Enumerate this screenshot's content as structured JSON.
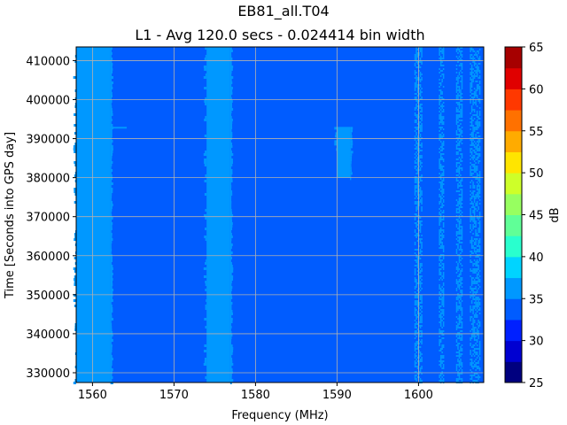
{
  "chart_data": {
    "type": "heatmap",
    "title": "EB81_all.T04",
    "subtitle": "L1 - Avg 120.0 secs - 0.024414 bin width",
    "xlabel": "Frequency (MHz)",
    "ylabel": "Time [Seconds into GPS day]",
    "colorbar_label": "dB",
    "xlim": [
      1558,
      1608
    ],
    "ylim": [
      327500,
      413500
    ],
    "x_ticks": [
      1560,
      1570,
      1580,
      1590,
      1600
    ],
    "y_ticks": [
      330000,
      340000,
      350000,
      360000,
      370000,
      380000,
      390000,
      400000,
      410000
    ],
    "grid": true,
    "colorbar": {
      "levels": [
        25,
        27.5,
        30,
        32.5,
        35,
        37.5,
        40,
        42.5,
        45,
        47.5,
        50,
        52.5,
        55,
        57.5,
        60,
        62.5,
        65
      ],
      "tick_values": [
        25,
        30,
        35,
        40,
        45,
        50,
        55,
        60,
        65
      ],
      "colors": [
        "#00007f",
        "#0000d1",
        "#0020ff",
        "#005cff",
        "#0098ff",
        "#00d4ff",
        "#29ffce",
        "#60ff97",
        "#97ff60",
        "#ceff29",
        "#ffe500",
        "#ffab00",
        "#ff7100",
        "#ff3800",
        "#e00000",
        "#a60000"
      ]
    },
    "background_db": 33.5,
    "bands": [
      {
        "x": [
          1558.0,
          1562.2
        ],
        "db": 36,
        "edge": "soft"
      },
      {
        "x": [
          1574.0,
          1576.9
        ],
        "db": 37,
        "edge": "soft"
      },
      {
        "x": [
          1590.0,
          1591.6
        ],
        "db": 37,
        "y": [
          380000,
          393000
        ],
        "edge": "soft"
      },
      {
        "x": [
          1599.5,
          1600.4
        ],
        "db": 36,
        "edge": "speckle"
      },
      {
        "x": [
          1602.5,
          1603.0
        ],
        "db": 36,
        "edge": "speckle"
      },
      {
        "x": [
          1604.6,
          1605.3
        ],
        "db": 36,
        "edge": "speckle"
      },
      {
        "x": [
          1606.3,
          1607.6
        ],
        "db": 37,
        "edge": "speckle"
      }
    ],
    "streaks": [
      {
        "x": [
          1558.0,
          1564.2
        ],
        "y": 392800,
        "db": 37
      }
    ]
  }
}
